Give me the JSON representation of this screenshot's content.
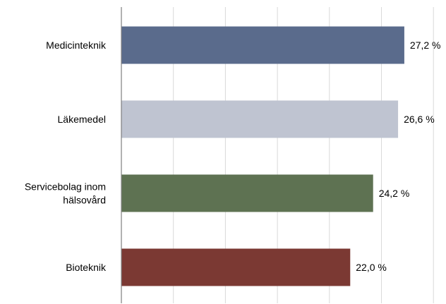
{
  "chart_data": {
    "type": "bar",
    "orientation": "horizontal",
    "title": "",
    "xlabel": "",
    "ylabel": "",
    "xlim": [
      0,
      30
    ],
    "grid": true,
    "legend": "none",
    "categories": [
      [
        "Medicinteknik"
      ],
      [
        "Läkemedel"
      ],
      [
        "Servicebolag inom",
        "hälsovård"
      ],
      [
        "Bioteknik"
      ]
    ],
    "values": [
      27.2,
      26.6,
      24.2,
      22.0
    ],
    "value_labels": [
      "27,2 %",
      "26,6 %",
      "24,2 %",
      "22,0 %"
    ],
    "colors": [
      "#5a6b8c",
      "#bfc4d1",
      "#5e7252",
      "#7b3933"
    ]
  }
}
